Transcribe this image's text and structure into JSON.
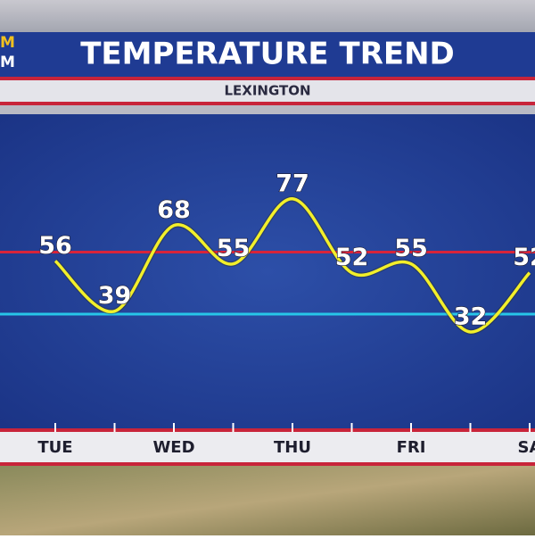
{
  "header": {
    "logo_lines": [
      "M",
      "M"
    ],
    "title": "TEMPERATURE TREND",
    "subtitle": "LEXINGTON"
  },
  "chart_data": {
    "type": "line",
    "categories": [
      "TUE",
      null,
      "WED",
      null,
      "THU",
      null,
      "FRI",
      null,
      "SA"
    ],
    "series": [
      {
        "color": "#f2ef2a",
        "values": [
          56,
          39,
          68,
          55,
          77,
          52,
          55,
          32,
          52
        ]
      }
    ],
    "reference_lines": [
      {
        "value": 59,
        "color": "#d8243a"
      },
      {
        "value": 38,
        "color": "#27c6e8"
      }
    ],
    "ylim": [
      0,
      105
    ]
  }
}
